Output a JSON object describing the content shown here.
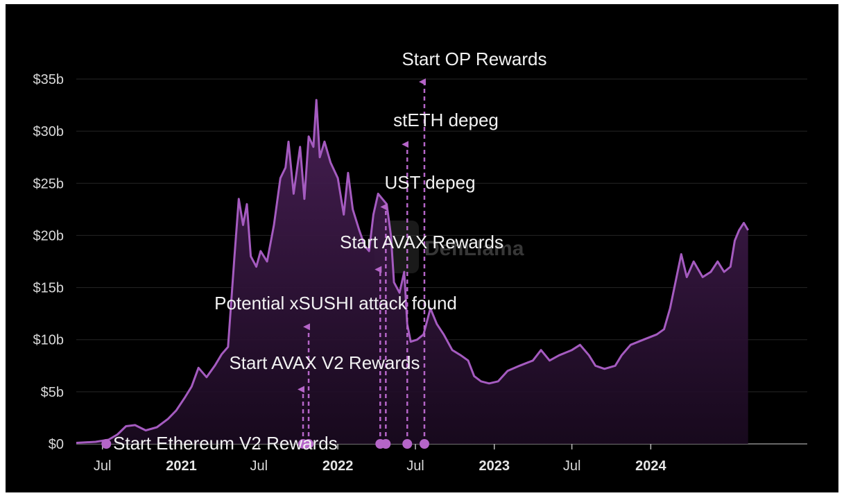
{
  "chart_data": {
    "type": "area",
    "title": "",
    "xlabel": "",
    "ylabel": "",
    "watermark": "DefiLlama",
    "x_range": [
      "2020-05-01",
      "2024-12-31"
    ],
    "ylim": [
      0,
      35
    ],
    "y_unit": "billion USD",
    "grid": "horizontal",
    "colors": {
      "line": "#a55bc0",
      "area_top": "#4a2057",
      "marker": "#b565c8",
      "background": "#000000"
    },
    "y_ticks": [
      {
        "value": 0,
        "label": "$0"
      },
      {
        "value": 5,
        "label": "$5b"
      },
      {
        "value": 10,
        "label": "$10b"
      },
      {
        "value": 15,
        "label": "$15b"
      },
      {
        "value": 20,
        "label": "$20b"
      },
      {
        "value": 25,
        "label": "$25b"
      },
      {
        "value": 30,
        "label": "$30b"
      },
      {
        "value": 35,
        "label": "$35b"
      }
    ],
    "x_ticks": [
      {
        "date": "2020-07-01",
        "label": "Jul",
        "bold": false
      },
      {
        "date": "2021-01-01",
        "label": "2021",
        "bold": true
      },
      {
        "date": "2021-07-01",
        "label": "Jul",
        "bold": false
      },
      {
        "date": "2022-01-01",
        "label": "2022",
        "bold": true
      },
      {
        "date": "2022-07-01",
        "label": "Jul",
        "bold": false
      },
      {
        "date": "2023-01-01",
        "label": "2023",
        "bold": true
      },
      {
        "date": "2023-07-01",
        "label": "Jul",
        "bold": false
      },
      {
        "date": "2024-01-01",
        "label": "2024",
        "bold": true
      }
    ],
    "series": [
      {
        "name": "",
        "points": [
          [
            "2020-05-01",
            0.1
          ],
          [
            "2020-06-15",
            0.2
          ],
          [
            "2020-07-15",
            0.4
          ],
          [
            "2020-08-05",
            0.9
          ],
          [
            "2020-08-25",
            1.7
          ],
          [
            "2020-09-15",
            1.8
          ],
          [
            "2020-10-10",
            1.3
          ],
          [
            "2020-11-05",
            1.6
          ],
          [
            "2020-12-01",
            2.4
          ],
          [
            "2020-12-20",
            3.2
          ],
          [
            "2021-01-10",
            4.5
          ],
          [
            "2021-01-25",
            5.5
          ],
          [
            "2021-02-10",
            7.3
          ],
          [
            "2021-03-01",
            6.4
          ],
          [
            "2021-03-20",
            7.5
          ],
          [
            "2021-04-05",
            8.6
          ],
          [
            "2021-04-20",
            9.3
          ],
          [
            "2021-05-05",
            18.0
          ],
          [
            "2021-05-15",
            23.5
          ],
          [
            "2021-05-25",
            21.0
          ],
          [
            "2021-06-03",
            23.0
          ],
          [
            "2021-06-12",
            18.0
          ],
          [
            "2021-06-25",
            17.0
          ],
          [
            "2021-07-05",
            18.5
          ],
          [
            "2021-07-20",
            17.5
          ],
          [
            "2021-08-05",
            21.0
          ],
          [
            "2021-08-20",
            25.5
          ],
          [
            "2021-09-01",
            26.5
          ],
          [
            "2021-09-08",
            29.0
          ],
          [
            "2021-09-20",
            24.0
          ],
          [
            "2021-10-05",
            28.5
          ],
          [
            "2021-10-15",
            23.5
          ],
          [
            "2021-10-25",
            29.5
          ],
          [
            "2021-11-05",
            28.5
          ],
          [
            "2021-11-12",
            33.0
          ],
          [
            "2021-11-20",
            27.5
          ],
          [
            "2021-12-01",
            29.0
          ],
          [
            "2021-12-15",
            27.0
          ],
          [
            "2022-01-01",
            25.5
          ],
          [
            "2022-01-15",
            22.0
          ],
          [
            "2022-01-25",
            26.0
          ],
          [
            "2022-02-05",
            22.5
          ],
          [
            "2022-02-20",
            20.5
          ],
          [
            "2022-03-05",
            19.0
          ],
          [
            "2022-03-15",
            18.5
          ],
          [
            "2022-03-25",
            22.0
          ],
          [
            "2022-04-05",
            24.0
          ],
          [
            "2022-04-15",
            23.5
          ],
          [
            "2022-04-25",
            23.0
          ],
          [
            "2022-05-05",
            20.0
          ],
          [
            "2022-05-12",
            15.5
          ],
          [
            "2022-05-25",
            14.5
          ],
          [
            "2022-06-05",
            16.5
          ],
          [
            "2022-06-12",
            11.5
          ],
          [
            "2022-06-20",
            9.8
          ],
          [
            "2022-07-05",
            10.0
          ],
          [
            "2022-07-20",
            10.5
          ],
          [
            "2022-08-05",
            13.0
          ],
          [
            "2022-08-20",
            11.5
          ],
          [
            "2022-09-05",
            10.5
          ],
          [
            "2022-09-25",
            9.0
          ],
          [
            "2022-10-15",
            8.5
          ],
          [
            "2022-11-01",
            8.0
          ],
          [
            "2022-11-15",
            6.5
          ],
          [
            "2022-12-01",
            6.0
          ],
          [
            "2022-12-20",
            5.8
          ],
          [
            "2023-01-10",
            6.0
          ],
          [
            "2023-02-01",
            7.0
          ],
          [
            "2023-03-01",
            7.5
          ],
          [
            "2023-04-01",
            8.0
          ],
          [
            "2023-04-20",
            9.0
          ],
          [
            "2023-05-10",
            8.0
          ],
          [
            "2023-06-01",
            8.5
          ],
          [
            "2023-07-01",
            9.0
          ],
          [
            "2023-07-20",
            9.5
          ],
          [
            "2023-08-10",
            8.5
          ],
          [
            "2023-08-25",
            7.5
          ],
          [
            "2023-09-15",
            7.2
          ],
          [
            "2023-10-10",
            7.5
          ],
          [
            "2023-10-25",
            8.5
          ],
          [
            "2023-11-15",
            9.5
          ],
          [
            "2023-12-15",
            10.0
          ],
          [
            "2024-01-15",
            10.5
          ],
          [
            "2024-02-01",
            11.0
          ],
          [
            "2024-02-15",
            13.0
          ],
          [
            "2024-03-01",
            16.0
          ],
          [
            "2024-03-12",
            18.2
          ],
          [
            "2024-03-25",
            16.0
          ],
          [
            "2024-04-10",
            17.5
          ],
          [
            "2024-05-01",
            16.0
          ],
          [
            "2024-05-20",
            16.5
          ],
          [
            "2024-06-05",
            17.5
          ],
          [
            "2024-06-20",
            16.5
          ],
          [
            "2024-07-05",
            17.0
          ],
          [
            "2024-07-15",
            19.5
          ],
          [
            "2024-07-25",
            20.5
          ],
          [
            "2024-08-05",
            21.2
          ],
          [
            "2024-08-15",
            20.5
          ]
        ]
      }
    ],
    "annotations": [
      {
        "label": "Start Ethereum V2 Rewards",
        "date": "2020-07-10",
        "arrow_top": 0
      },
      {
        "label": "Start AVAX V2 Rewards",
        "date": "2021-10-12",
        "arrow_top": 5.5
      },
      {
        "label": "Potential xSUSHI attack found",
        "date": "2021-10-25",
        "arrow_top": 11.5
      },
      {
        "label": "Start AVAX Rewards",
        "date": "2022-04-10",
        "arrow_top": 17.0
      },
      {
        "label": "UST depeg",
        "date": "2022-04-23",
        "arrow_top": 23.0
      },
      {
        "label": "stETH depeg",
        "date": "2022-06-12",
        "arrow_top": 29.0
      },
      {
        "label": "Start OP Rewards",
        "date": "2022-07-22",
        "arrow_top": 35.0
      }
    ]
  }
}
